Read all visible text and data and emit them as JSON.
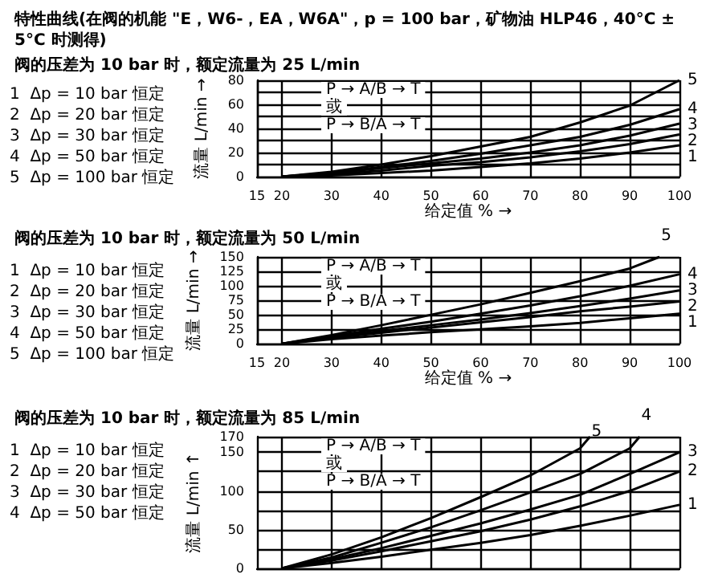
{
  "chart_data": [
    {
      "type": "line",
      "title": "特性曲线(在阀的机能 \"E，W6-，EA，W6A\"，p = 100 bar，矿物油 HLP46，40°C ± 5°C 时测得)",
      "subtitle": "阀的压差为 10 bar 时，额定流量为 25 L/min",
      "xlabel": "给定值 % →",
      "ylabel": "流量 L/min →",
      "annotations": [
        "P → A/B → T",
        "或",
        "P → B/A → T",
        "1  Δp = 10 bar 恒定",
        "2  Δp = 20 bar 恒定",
        "3  Δp = 30 bar 恒定",
        "4  Δp = 50 bar 恒定",
        "5  Δp = 100 bar 恒定"
      ],
      "x": [
        20,
        30,
        40,
        50,
        60,
        70,
        80,
        90,
        100
      ],
      "xlim": [
        15,
        100
      ],
      "xticks": [
        15,
        20,
        30,
        40,
        50,
        60,
        70,
        80,
        90,
        100
      ],
      "ylim": [
        0,
        80
      ],
      "yticks": [
        0,
        {
          "value": 10,
          "label": null
        },
        20,
        {
          "value": 30,
          "label": null
        },
        40,
        {
          "value": 50,
          "label": null
        },
        60,
        {
          "value": 70,
          "label": null
        },
        80
      ],
      "grid": true,
      "marker": "none",
      "line_style": "solid",
      "series": [
        {
          "name": "1",
          "color": "#000000",
          "values": [
            0,
            1,
            3,
            5,
            8,
            11,
            15,
            20,
            26
          ]
        },
        {
          "name": "2",
          "color": "#000000",
          "values": [
            0,
            2,
            5,
            9,
            12,
            16,
            21,
            27,
            35
          ]
        },
        {
          "name": "3",
          "color": "#000000",
          "values": [
            0,
            3,
            7,
            11,
            15,
            20,
            26,
            34,
            44
          ]
        },
        {
          "name": "4",
          "color": "#000000",
          "values": [
            0,
            3,
            8,
            13,
            19,
            26,
            33,
            43,
            56
          ]
        },
        {
          "name": "5",
          "color": "#000000",
          "values": [
            0,
            4,
            10,
            17,
            25,
            33,
            45,
            59,
            80
          ]
        }
      ]
    },
    {
      "type": "line",
      "subtitle": "阀的压差为 10 bar 时，额定流量为 50 L/min",
      "xlabel": "给定值 % →",
      "ylabel": "流量 L/min →",
      "annotations": [
        "P → A/B → T",
        "或",
        "P → B/A → T",
        "1  Δp = 10 bar 恒定",
        "2  Δp = 20 bar 恒定",
        "3  Δp = 30 bar 恒定",
        "4  Δp = 50 bar 恒定",
        "5  Δp = 100 bar 恒定"
      ],
      "x": [
        20,
        30,
        40,
        50,
        60,
        70,
        80,
        90,
        100
      ],
      "xlim": [
        15,
        100
      ],
      "xticks": [
        15,
        20,
        30,
        40,
        50,
        60,
        70,
        80,
        90,
        100
      ],
      "ylim": [
        0,
        150
      ],
      "yticks": [
        0,
        25,
        50,
        75,
        100,
        125,
        150
      ],
      "grid": true,
      "marker": "none",
      "line_style": "solid",
      "series": [
        {
          "name": "1",
          "color": "#000000",
          "values": [
            0,
            8,
            14,
            20,
            25,
            30,
            36,
            44,
            52
          ]
        },
        {
          "name": "2",
          "color": "#000000",
          "values": [
            0,
            10,
            19,
            28,
            37,
            46,
            56,
            64,
            73
          ]
        },
        {
          "name": "3",
          "color": "#000000",
          "values": [
            0,
            11,
            22,
            32,
            42,
            53,
            65,
            78,
            92
          ]
        },
        {
          "name": "4",
          "color": "#000000",
          "values": [
            0,
            13,
            26,
            38,
            52,
            66,
            82,
            100,
            120
          ]
        },
        {
          "name": "5",
          "color": "#000000",
          "x": [
            20,
            30,
            40,
            50,
            60,
            70,
            80,
            90,
            96
          ],
          "values": [
            0,
            15,
            32,
            50,
            68,
            88,
            108,
            130,
            150
          ]
        }
      ]
    },
    {
      "type": "line",
      "subtitle": "阀的压差为 10 bar 时，额定流量为 85 L/min",
      "ylabel": "流量 L/min ↑",
      "annotations": [
        "P → A/B → T",
        "或",
        "P → B/A → T",
        "1  Δp = 10 bar 恒定",
        "2  Δp = 20 bar 恒定",
        "3  Δp = 30 bar 恒定",
        "4  Δp = 50 bar 恒定"
      ],
      "x": [
        20,
        30,
        40,
        50,
        60,
        70,
        80,
        90,
        100
      ],
      "xlim": [
        15,
        100
      ],
      "xticks": [
        {
          "value": 20,
          "label": null
        },
        {
          "value": 30,
          "label": null
        },
        {
          "value": 40,
          "label": null
        },
        {
          "value": 50,
          "label": null
        },
        {
          "value": 60,
          "label": null
        },
        {
          "value": 70,
          "label": null
        },
        {
          "value": 80,
          "label": null
        },
        {
          "value": 90,
          "label": null
        },
        {
          "value": 100,
          "label": null
        }
      ],
      "ylim": [
        0,
        170
      ],
      "yticks": [
        0,
        {
          "value": 25,
          "label": null
        },
        50,
        {
          "value": 75,
          "label": null
        },
        100,
        {
          "value": 125,
          "label": null
        },
        150,
        170
      ],
      "tick_labels": "y",
      "grid": true,
      "marker": "none",
      "line_style": "solid",
      "series": [
        {
          "name": "1",
          "color": "#000000",
          "values": [
            0,
            7,
            15,
            24,
            33,
            43,
            55,
            68,
            82
          ]
        },
        {
          "name": "2",
          "color": "#000000",
          "values": [
            0,
            10,
            22,
            35,
            48,
            63,
            80,
            100,
            125
          ]
        },
        {
          "name": "3",
          "color": "#000000",
          "values": [
            0,
            12,
            26,
            42,
            58,
            76,
            95,
            122,
            150
          ]
        },
        {
          "name": "4",
          "color": "#000000",
          "x": [
            20,
            30,
            40,
            50,
            60,
            70,
            80,
            90,
            92
          ],
          "values": [
            0,
            14,
            33,
            53,
            75,
            98,
            122,
            155,
            170
          ]
        },
        {
          "name": "5",
          "color": "#000000",
          "x": [
            20,
            30,
            40,
            50,
            60,
            70,
            80,
            82
          ],
          "values": [
            0,
            18,
            40,
            65,
            92,
            120,
            155,
            170
          ]
        }
      ]
    }
  ]
}
